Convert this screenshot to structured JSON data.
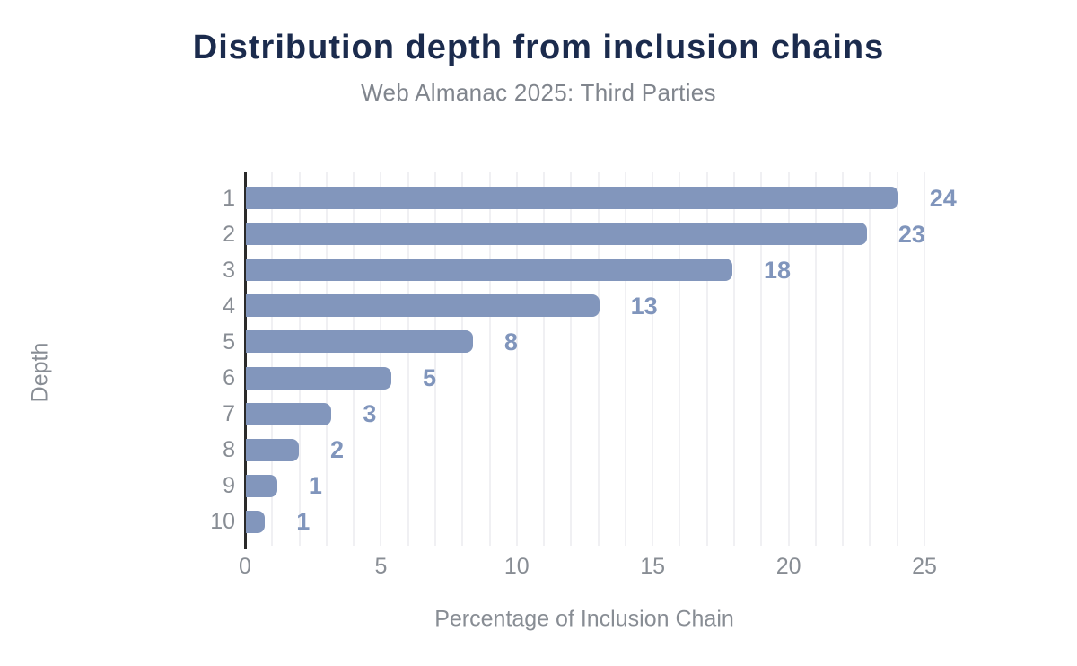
{
  "chart_data": {
    "type": "bar",
    "orientation": "horizontal",
    "title": "Distribution depth from inclusion chains",
    "subtitle": "Web Almanac 2025: Third Parties",
    "categories": [
      "1",
      "2",
      "3",
      "4",
      "5",
      "6",
      "7",
      "8",
      "9",
      "10"
    ],
    "values": [
      24,
      23,
      18,
      13,
      8,
      5,
      3,
      2,
      1,
      1
    ],
    "bar_lengths_pct": [
      24.0,
      22.85,
      17.9,
      13.0,
      8.35,
      5.35,
      3.15,
      1.95,
      1.15,
      0.7
    ],
    "xlabel": "Percentage of Inclusion Chain",
    "ylabel": "Depth",
    "xlim": [
      0,
      25
    ],
    "xticks": [
      0,
      5,
      10,
      15,
      20,
      25
    ],
    "grid": "vertical gridlines every 1 unit",
    "legend": "none",
    "colors": {
      "bar": "#8296bc",
      "value_label": "#8095bc",
      "title": "#1b2b4d",
      "subtitle": "#80858d",
      "axis_text": "#888d94",
      "axis_line": "#2a2a2a",
      "gridline": "#f0f0f3",
      "background": "#ffffff"
    }
  }
}
